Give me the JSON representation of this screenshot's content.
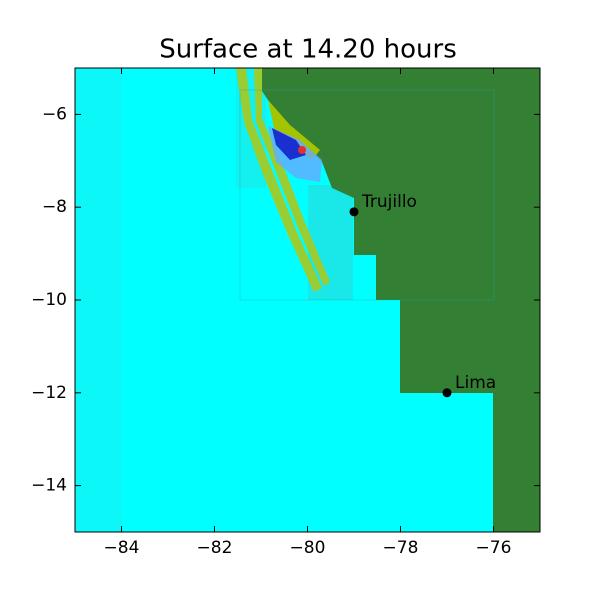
{
  "chart_data": {
    "type": "map",
    "title": "Surface at 14.20 hours",
    "xlim": [
      -85,
      -75
    ],
    "ylim": [
      -15,
      -5
    ],
    "xticks": [
      {
        "value": -84,
        "label": "−84"
      },
      {
        "value": -82,
        "label": "−82"
      },
      {
        "value": -80,
        "label": "−80"
      },
      {
        "value": -78,
        "label": "−78"
      },
      {
        "value": -76,
        "label": "−76"
      }
    ],
    "yticks": [
      {
        "value": -6,
        "label": "−6"
      },
      {
        "value": -8,
        "label": "−8"
      },
      {
        "value": -10,
        "label": "−10"
      },
      {
        "value": -12,
        "label": "−12"
      },
      {
        "value": -14,
        "label": "−14"
      }
    ],
    "points": [
      {
        "name": "Trujillo",
        "x": -79,
        "y": -8.1
      },
      {
        "name": "Lima",
        "x": -77,
        "y": -12
      }
    ]
  }
}
